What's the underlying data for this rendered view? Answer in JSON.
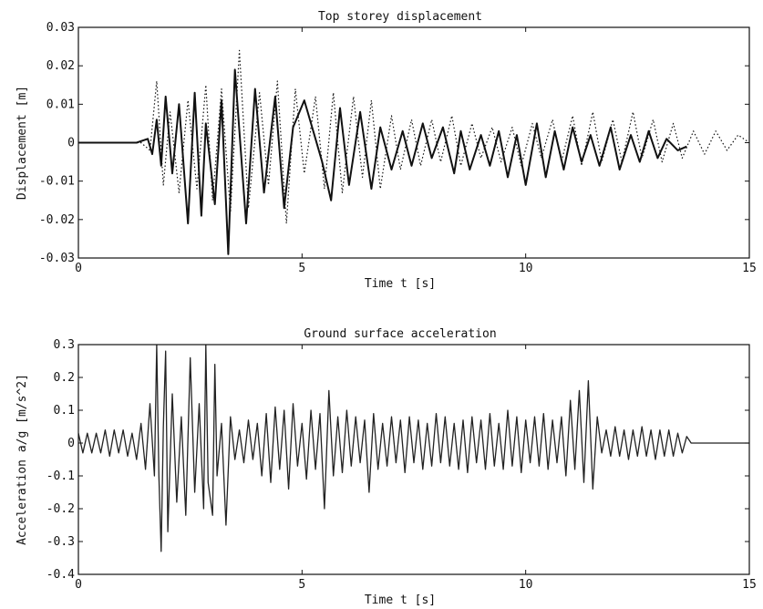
{
  "chart_data": [
    {
      "type": "line",
      "title": "Top storey displacement",
      "xlabel": "Time t [s]",
      "ylabel": "Displacement [m]",
      "xlim": [
        0,
        15
      ],
      "ylim": [
        -0.03,
        0.03
      ],
      "xticks": [
        "0",
        "5",
        "10",
        "15"
      ],
      "yticks": [
        "-0.03",
        "-0.02",
        "-0.01",
        "0",
        "0.01",
        "0.02",
        "0.03"
      ],
      "grid": false,
      "series": [
        {
          "style": "solid",
          "color": "#111111",
          "x": [
            0,
            1.3,
            1.55,
            1.65,
            1.75,
            1.85,
            1.95,
            2.1,
            2.25,
            2.45,
            2.6,
            2.75,
            2.85,
            3.05,
            3.2,
            3.35,
            3.5,
            3.75,
            3.95,
            4.15,
            4.4,
            4.6,
            4.8,
            5.05,
            5.3,
            5.45,
            5.65,
            5.85,
            6.05,
            6.3,
            6.55,
            6.75,
            7.0,
            7.25,
            7.45,
            7.7,
            7.9,
            8.15,
            8.4,
            8.55,
            8.75,
            9.0,
            9.2,
            9.4,
            9.6,
            9.8,
            10.0,
            10.25,
            10.45,
            10.65,
            10.85,
            11.05,
            11.25,
            11.45,
            11.65,
            11.9,
            12.1,
            12.35,
            12.55,
            12.75,
            12.95,
            13.15,
            13.4,
            13.6
          ],
          "y": [
            0,
            0,
            0.001,
            -0.003,
            0.006,
            -0.006,
            0.012,
            -0.008,
            0.01,
            -0.021,
            0.013,
            -0.019,
            0.005,
            -0.016,
            0.011,
            -0.029,
            0.019,
            -0.021,
            0.014,
            -0.013,
            0.012,
            -0.017,
            0.004,
            0.011,
            0.001,
            -0.005,
            -0.015,
            0.009,
            -0.011,
            0.008,
            -0.012,
            0.004,
            -0.007,
            0.003,
            -0.006,
            0.005,
            -0.004,
            0.004,
            -0.008,
            0.003,
            -0.007,
            0.002,
            -0.006,
            0.003,
            -0.009,
            0.002,
            -0.011,
            0.005,
            -0.009,
            0.003,
            -0.007,
            0.004,
            -0.005,
            0.002,
            -0.006,
            0.004,
            -0.007,
            0.002,
            -0.005,
            0.003,
            -0.004,
            0.001,
            -0.002,
            -0.001
          ]
        },
        {
          "style": "dotted",
          "color": "#111111",
          "x": [
            0,
            1.4,
            1.6,
            1.75,
            1.9,
            2.05,
            2.25,
            2.45,
            2.65,
            2.85,
            3.0,
            3.2,
            3.4,
            3.6,
            3.8,
            4.05,
            4.25,
            4.45,
            4.65,
            4.85,
            5.05,
            5.3,
            5.5,
            5.7,
            5.9,
            6.15,
            6.35,
            6.55,
            6.75,
            7.0,
            7.2,
            7.45,
            7.65,
            7.9,
            8.1,
            8.35,
            8.55,
            8.8,
            9.0,
            9.25,
            9.45,
            9.7,
            9.9,
            10.15,
            10.35,
            10.6,
            10.8,
            11.05,
            11.25,
            11.5,
            11.7,
            11.95,
            12.15,
            12.4,
            12.6,
            12.85,
            13.05,
            13.3,
            13.5,
            13.75,
            14.0,
            14.25,
            14.5,
            14.75,
            15.0
          ],
          "y": [
            0,
            0,
            -0.002,
            0.016,
            -0.011,
            0.008,
            -0.013,
            0.011,
            -0.012,
            0.015,
            -0.015,
            0.014,
            -0.018,
            0.024,
            -0.017,
            0.013,
            -0.011,
            0.016,
            -0.021,
            0.014,
            -0.008,
            0.012,
            -0.012,
            0.013,
            -0.013,
            0.012,
            -0.009,
            0.011,
            -0.012,
            0.007,
            -0.007,
            0.006,
            -0.006,
            0.006,
            -0.005,
            0.007,
            -0.006,
            0.005,
            -0.004,
            0.004,
            -0.005,
            0.004,
            -0.006,
            0.005,
            -0.004,
            0.006,
            -0.005,
            0.007,
            -0.006,
            0.008,
            -0.005,
            0.006,
            -0.005,
            0.008,
            -0.004,
            0.006,
            -0.005,
            0.005,
            -0.004,
            0.003,
            -0.003,
            0.003,
            -0.002,
            0.002,
            0.0
          ]
        }
      ]
    },
    {
      "type": "line",
      "title": "Ground surface acceleration",
      "xlabel": "Time t [s]",
      "ylabel": "Acceleration a/g [m/s^2]",
      "xlim": [
        0,
        15
      ],
      "ylim": [
        -0.4,
        0.3
      ],
      "xticks": [
        "0",
        "5",
        "10",
        "15"
      ],
      "yticks": [
        "-0.4",
        "-0.3",
        "-0.2",
        "-0.1",
        "0",
        "0.1",
        "0.2",
        "0.3"
      ],
      "grid": false,
      "series": [
        {
          "style": "solid",
          "color": "#222222",
          "x": [
            0,
            0.1,
            0.2,
            0.3,
            0.4,
            0.5,
            0.6,
            0.7,
            0.8,
            0.9,
            1.0,
            1.1,
            1.2,
            1.3,
            1.4,
            1.5,
            1.6,
            1.7,
            1.75,
            1.8,
            1.85,
            1.9,
            1.95,
            2.0,
            2.1,
            2.2,
            2.3,
            2.4,
            2.5,
            2.6,
            2.7,
            2.8,
            2.85,
            2.9,
            3.0,
            3.05,
            3.1,
            3.2,
            3.3,
            3.4,
            3.5,
            3.6,
            3.7,
            3.8,
            3.9,
            4.0,
            4.1,
            4.2,
            4.3,
            4.4,
            4.5,
            4.6,
            4.7,
            4.8,
            4.9,
            5.0,
            5.1,
            5.2,
            5.3,
            5.4,
            5.5,
            5.6,
            5.7,
            5.8,
            5.9,
            6.0,
            6.1,
            6.2,
            6.3,
            6.4,
            6.5,
            6.6,
            6.7,
            6.8,
            6.9,
            7.0,
            7.1,
            7.2,
            7.3,
            7.4,
            7.5,
            7.6,
            7.7,
            7.8,
            7.9,
            8.0,
            8.1,
            8.2,
            8.3,
            8.4,
            8.5,
            8.6,
            8.7,
            8.8,
            8.9,
            9.0,
            9.1,
            9.2,
            9.3,
            9.4,
            9.5,
            9.6,
            9.7,
            9.8,
            9.9,
            10.0,
            10.1,
            10.2,
            10.3,
            10.4,
            10.5,
            10.6,
            10.7,
            10.8,
            10.9,
            11.0,
            11.1,
            11.2,
            11.3,
            11.4,
            11.5,
            11.6,
            11.7,
            11.8,
            11.9,
            12.0,
            12.1,
            12.2,
            12.3,
            12.4,
            12.5,
            12.6,
            12.7,
            12.8,
            12.9,
            13.0,
            13.1,
            13.2,
            13.3,
            13.4,
            13.5,
            13.6,
            13.7,
            13.8,
            14.0,
            15.0
          ],
          "y": [
            0.03,
            -0.03,
            0.03,
            -0.03,
            0.03,
            -0.03,
            0.04,
            -0.04,
            0.04,
            -0.03,
            0.04,
            -0.04,
            0.03,
            -0.05,
            0.06,
            -0.08,
            0.12,
            -0.1,
            0.3,
            -0.1,
            -0.33,
            0.05,
            0.28,
            -0.27,
            0.15,
            -0.18,
            0.08,
            -0.22,
            0.26,
            -0.15,
            0.12,
            -0.2,
            0.3,
            -0.12,
            -0.22,
            0.24,
            -0.1,
            0.06,
            -0.25,
            0.08,
            -0.05,
            0.04,
            -0.06,
            0.07,
            -0.05,
            0.06,
            -0.1,
            0.09,
            -0.12,
            0.11,
            -0.08,
            0.1,
            -0.14,
            0.12,
            -0.07,
            0.06,
            -0.11,
            0.1,
            -0.08,
            0.09,
            -0.2,
            0.16,
            -0.1,
            0.08,
            -0.09,
            0.1,
            -0.07,
            0.08,
            -0.06,
            0.07,
            -0.15,
            0.09,
            -0.08,
            0.06,
            -0.07,
            0.08,
            -0.06,
            0.07,
            -0.09,
            0.08,
            -0.06,
            0.07,
            -0.08,
            0.06,
            -0.07,
            0.09,
            -0.06,
            0.08,
            -0.07,
            0.06,
            -0.08,
            0.07,
            -0.09,
            0.08,
            -0.06,
            0.07,
            -0.08,
            0.09,
            -0.07,
            0.06,
            -0.08,
            0.1,
            -0.07,
            0.08,
            -0.09,
            0.07,
            -0.06,
            0.08,
            -0.07,
            0.09,
            -0.08,
            0.07,
            -0.06,
            0.08,
            -0.1,
            0.13,
            -0.08,
            0.16,
            -0.12,
            0.19,
            -0.14,
            0.08,
            -0.03,
            0.04,
            -0.04,
            0.05,
            -0.04,
            0.04,
            -0.05,
            0.04,
            -0.04,
            0.05,
            -0.04,
            0.04,
            -0.05,
            0.04,
            -0.04,
            0.04,
            -0.04,
            0.03,
            -0.03,
            0.02,
            0.0,
            0.0,
            0.0,
            0.0
          ]
        }
      ]
    }
  ]
}
